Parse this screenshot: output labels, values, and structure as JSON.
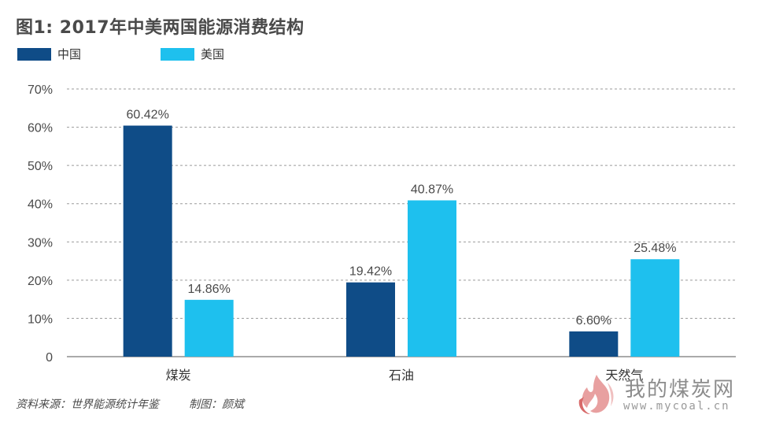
{
  "title": "图1: 2017年中美两国能源消费结构",
  "legend": [
    {
      "name": "中国",
      "color": "#0f4c87"
    },
    {
      "name": "美国",
      "color": "#1ec0ee"
    }
  ],
  "chart_data": {
    "type": "bar",
    "categories": [
      "煤炭",
      "石油",
      "天然气"
    ],
    "series": [
      {
        "name": "中国",
        "values": [
          60.42,
          19.42,
          6.6
        ],
        "labels": [
          "60.42%",
          "19.42%",
          "6.60%"
        ],
        "color": "#0f4c87"
      },
      {
        "name": "美国",
        "values": [
          14.86,
          40.87,
          25.48
        ],
        "labels": [
          "14.86%",
          "40.87%",
          "25.48%"
        ],
        "color": "#1ec0ee"
      }
    ],
    "ylim": [
      0,
      70
    ],
    "yticks": [
      "0",
      "10%",
      "20%",
      "30%",
      "40%",
      "50%",
      "60%",
      "70%"
    ],
    "grid": "dashed horizontal",
    "legend_position": "top-left"
  },
  "footer": {
    "source": "资料来源：世界能源统计年鉴",
    "author": "制图：颜斌"
  },
  "watermark": {
    "name": "我的煤炭网",
    "url": "www.mycoal.cn",
    "icon": "flame-icon"
  }
}
